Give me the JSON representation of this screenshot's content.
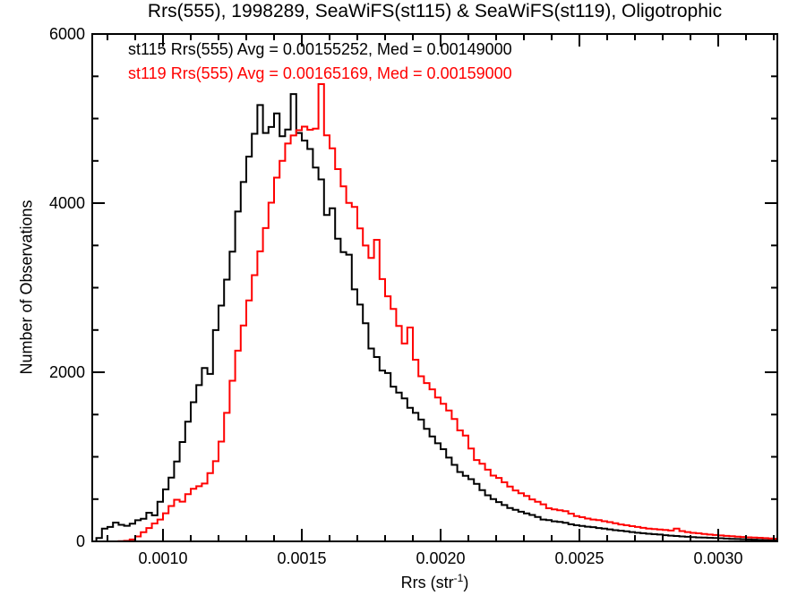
{
  "title": "Rrs(555), 1998289, SeaWiFS(st115) & SeaWiFS(st119), Oligotrophic",
  "legend": {
    "items": [
      {
        "label": "st115 Rrs(555) Avg = 0.00155252, Med = 0.00149000",
        "color": "#000000"
      },
      {
        "label": "st119 Rrs(555) Avg = 0.00165169, Med = 0.00159000",
        "color": "#ff0000"
      }
    ]
  },
  "axes": {
    "y_label": "Number of Observations",
    "x_label_pre": "Rrs (str",
    "x_label_sup": "-1",
    "x_label_post": ")"
  },
  "colors": {
    "foreground": "#000000",
    "series_black": "#000000",
    "series_red": "#ff0000",
    "background": "#ffffff"
  },
  "chart_data": {
    "type": "histogram-step",
    "title": "Rrs(555), 1998289, SeaWiFS(st115) & SeaWiFS(st119), Oligotrophic",
    "xlabel": "Rrs (str-1)",
    "ylabel": "Number of Observations",
    "grid": false,
    "legend_position": "top-left-inside",
    "bin_start": 0.00076,
    "bin_width": 2e-05,
    "xlim": [
      0.000745,
      0.003213
    ],
    "ylim": [
      0,
      6000
    ],
    "x_major_ticks": [
      0.001,
      0.0015,
      0.002,
      0.0025,
      0.003
    ],
    "x_major_labels": [
      "0.0010",
      "0.0015",
      "0.0020",
      "0.0025",
      "0.0030"
    ],
    "x_minor_step": 0.0001,
    "y_major_ticks": [
      0,
      2000,
      4000,
      6000
    ],
    "y_major_labels": [
      "0",
      "2000",
      "4000",
      "6000"
    ],
    "y_minor_step": 500,
    "series": [
      {
        "name": "st115",
        "color": "#000000",
        "avg": 0.00155252,
        "med": 0.00149,
        "values": [
          40,
          150,
          170,
          222,
          196,
          184,
          208,
          250,
          268,
          339,
          308,
          468,
          615,
          755,
          945,
          1175,
          1415,
          1645,
          1848,
          2050,
          1980,
          2498,
          2788,
          3095,
          3425,
          3900,
          4250,
          4550,
          4820,
          5160,
          4830,
          4900,
          5060,
          4790,
          4870,
          5290,
          4830,
          4740,
          4640,
          4420,
          4280,
          3860,
          3940,
          3580,
          3420,
          3390,
          2980,
          2800,
          2580,
          2280,
          2180,
          2020,
          1990,
          1830,
          1760,
          1690,
          1580,
          1520,
          1440,
          1330,
          1240,
          1160,
          1090,
          990,
          905,
          820,
          775,
          735,
          680,
          605,
          545,
          500,
          465,
          430,
          395,
          372,
          350,
          330,
          312,
          288,
          258,
          252,
          237,
          230,
          220,
          202,
          190,
          182,
          174,
          168,
          158,
          150,
          142,
          132,
          126,
          118,
          110,
          102,
          96,
          90,
          85,
          80,
          73,
          68,
          63,
          58,
          54,
          50,
          47,
          44,
          42,
          39,
          37,
          33,
          30,
          28,
          25,
          22,
          20,
          17,
          15,
          13,
          11,
          10
        ]
      },
      {
        "name": "st119",
        "color": "#ff0000",
        "avg": 0.00165169,
        "med": 0.00159,
        "values": [
          0,
          0,
          0,
          0,
          2,
          6,
          22,
          58,
          108,
          158,
          212,
          258,
          332,
          418,
          492,
          470,
          558,
          622,
          652,
          684,
          806,
          948,
          1180,
          1520,
          1900,
          2255,
          2552,
          2850,
          3148,
          3430,
          3705,
          4005,
          4302,
          4500,
          4705,
          4800,
          4862,
          4905,
          4868,
          4882,
          5407,
          4802,
          4648,
          4402,
          4198,
          4002,
          3955,
          3702,
          3498,
          3352,
          3566,
          3102,
          2898,
          2748,
          2548,
          2340,
          2529,
          2148,
          1952,
          1872,
          1798,
          1702,
          1628,
          1548,
          1448,
          1312,
          1252,
          1098,
          962,
          918,
          848,
          778,
          750,
          698,
          648,
          602,
          568,
          538,
          496,
          468,
          438,
          392,
          378,
          368,
          358,
          328,
          298,
          286,
          270,
          258,
          252,
          238,
          228,
          214,
          200,
          190,
          180,
          170,
          160,
          150,
          145,
          140,
          134,
          128,
          150,
          122,
          110,
          100,
          95,
          88,
          80,
          75,
          70,
          65,
          60,
          55,
          52,
          48,
          45,
          42,
          38,
          35,
          32,
          28
        ]
      }
    ]
  }
}
